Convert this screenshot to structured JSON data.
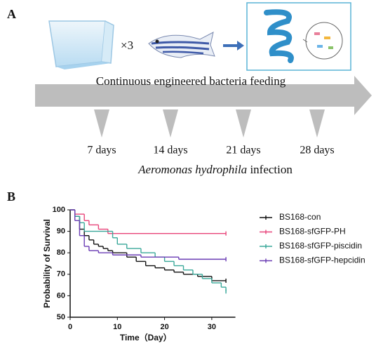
{
  "panel_labels": [
    "A",
    "B"
  ],
  "diagram": {
    "multiplier": "×3",
    "arrow_label": "Continuous engineered bacteria feeding",
    "timepoints": [
      "7 days",
      "14 days",
      "21 days",
      "28 days"
    ],
    "infection_species": "Aeromonas hydrophila",
    "infection_word": "infection"
  },
  "chart_data": {
    "type": "step",
    "xlabel": "Time（Day）",
    "ylabel": "Probability of Survival",
    "xlim": [
      0,
      35
    ],
    "xticks": [
      0,
      10,
      20,
      30
    ],
    "ylim": [
      50,
      100
    ],
    "yticks": [
      50,
      60,
      70,
      80,
      90,
      100
    ],
    "series": [
      {
        "name": "BS168-con",
        "color": "#111111",
        "x": [
          0,
          1,
          2,
          3,
          4,
          5,
          6,
          7,
          8,
          9,
          12,
          14,
          16,
          18,
          20,
          22,
          24,
          27,
          30,
          33
        ],
        "values": [
          100,
          97,
          91,
          88,
          86,
          84,
          83,
          82,
          81,
          80,
          78,
          76,
          74,
          73,
          72,
          71,
          70,
          69,
          67,
          67
        ]
      },
      {
        "name": "BS168-sfGFP-PH",
        "color": "#e8457a",
        "x": [
          0,
          1,
          3,
          4,
          6,
          8,
          33
        ],
        "values": [
          100,
          98,
          95,
          93,
          91,
          89,
          89
        ]
      },
      {
        "name": "BS168-sfGFP-piscidin",
        "color": "#3aa89a",
        "x": [
          0,
          1,
          2,
          3,
          9,
          10,
          12,
          15,
          18,
          20,
          22,
          24,
          26,
          28,
          30,
          32,
          33
        ],
        "values": [
          100,
          97,
          94,
          90,
          87,
          84,
          82,
          80,
          78,
          76,
          74,
          72,
          70,
          68,
          66,
          64,
          62
        ]
      },
      {
        "name": "BS168-sfGFP-hepcidin",
        "color": "#6a3cb4",
        "x": [
          0,
          1,
          2,
          3,
          4,
          6,
          9,
          15,
          23,
          33
        ],
        "values": [
          100,
          95,
          88,
          83,
          81,
          80,
          79,
          78,
          77,
          77
        ]
      }
    ]
  }
}
